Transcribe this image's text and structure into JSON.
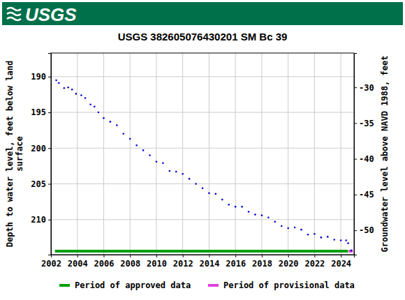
{
  "chart_data": {
    "type": "scatter",
    "header_text": "USGS",
    "title": "USGS 382605076430201 SM Bc  39",
    "ylabel": [
      "Depth to water level, feet below land",
      "surface"
    ],
    "y2label": "Groundwater level above NAVD 1988, feet",
    "color": "#0000cc",
    "marker": "dot",
    "grid": true,
    "legend": "bottom",
    "xlim": [
      2002,
      2025
    ],
    "xticks": [
      2002,
      2004,
      2006,
      2008,
      2010,
      2012,
      2014,
      2016,
      2018,
      2020,
      2022,
      2024
    ],
    "ylim": [
      186.7,
      214.9
    ],
    "yticks": [
      190,
      195,
      200,
      205,
      210
    ],
    "y2lim": [
      -25.2,
      -53.4
    ],
    "y2ticks": [
      -30,
      -35,
      -40,
      -45,
      -50
    ],
    "series": [
      {
        "name": "Period of approved data",
        "color": "#00a000",
        "period": [
          2002.3,
          2024.55
        ],
        "x": [
          2002.4,
          2002.6,
          2003.0,
          2003.3,
          2003.6,
          2003.9,
          2004.3,
          2004.6,
          2005.0,
          2005.3,
          2005.6,
          2006.0,
          2006.5,
          2007.0,
          2007.5,
          2008.0,
          2008.5,
          2009.0,
          2009.5,
          2010.0,
          2010.5,
          2011.0,
          2011.5,
          2012.0,
          2012.5,
          2013.0,
          2013.5,
          2014.0,
          2014.5,
          2015.0,
          2015.5,
          2016.0,
          2016.5,
          2017.0,
          2017.5,
          2018.0,
          2018.5,
          2019.0,
          2019.5,
          2020.0,
          2020.5,
          2021.0,
          2021.5,
          2022.0,
          2022.5,
          2023.0,
          2023.5,
          2024.0,
          2024.4,
          2024.55
        ],
        "values": [
          190.5,
          190.9,
          191.6,
          191.5,
          191.8,
          192.4,
          192.6,
          193.0,
          193.9,
          194.2,
          195.0,
          195.8,
          196.3,
          196.8,
          198.0,
          198.7,
          199.6,
          200.3,
          201.0,
          201.9,
          202.1,
          203.2,
          203.3,
          203.6,
          204.3,
          205.0,
          205.6,
          206.3,
          206.4,
          207.2,
          207.9,
          208.2,
          208.2,
          208.9,
          209.3,
          209.4,
          209.7,
          210.3,
          210.9,
          211.2,
          211.1,
          211.4,
          212.1,
          212.0,
          212.5,
          212.4,
          212.8,
          212.9,
          212.9,
          213.3
        ]
      },
      {
        "name": "Period of provisional data",
        "color": "#e040e0",
        "period": [
          2024.6,
          2024.9
        ],
        "x": [
          2024.8
        ],
        "values": [
          214.3
        ]
      }
    ]
  }
}
